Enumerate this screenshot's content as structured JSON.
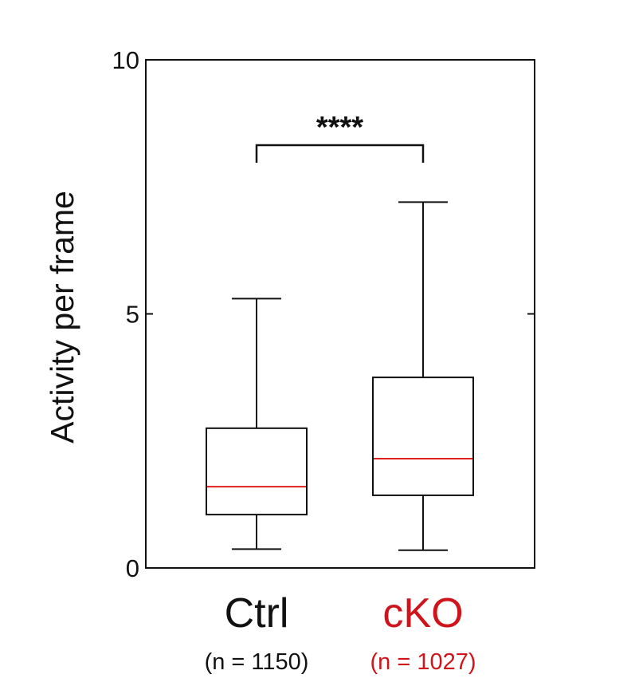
{
  "chart_data": {
    "type": "box",
    "title": "",
    "ylabel": "Activity per frame",
    "xlabel": "",
    "ylim": [
      0,
      10
    ],
    "yticks": [
      {
        "value": 0,
        "label": "0"
      },
      {
        "value": 5,
        "label": "5"
      },
      {
        "value": 10,
        "label": "10"
      }
    ],
    "groups": [
      {
        "label": "Ctrl",
        "n_label": "(n = 1150)",
        "color": "#111111",
        "median_color": "#e0201b",
        "whisker_low": 0.37,
        "q1": 1.05,
        "median": 1.6,
        "q3": 2.75,
        "whisker_high": 5.3
      },
      {
        "label": "cKO",
        "n_label": "(n = 1027)",
        "color": "#d0141b",
        "median_color": "#e0201b",
        "whisker_low": 0.35,
        "q1": 1.43,
        "median": 2.15,
        "q3": 3.75,
        "whisker_high": 7.2
      }
    ],
    "significance": {
      "text": "****",
      "from": 0,
      "to": 1,
      "y": 8.2
    },
    "grid": false,
    "legend": "none"
  }
}
